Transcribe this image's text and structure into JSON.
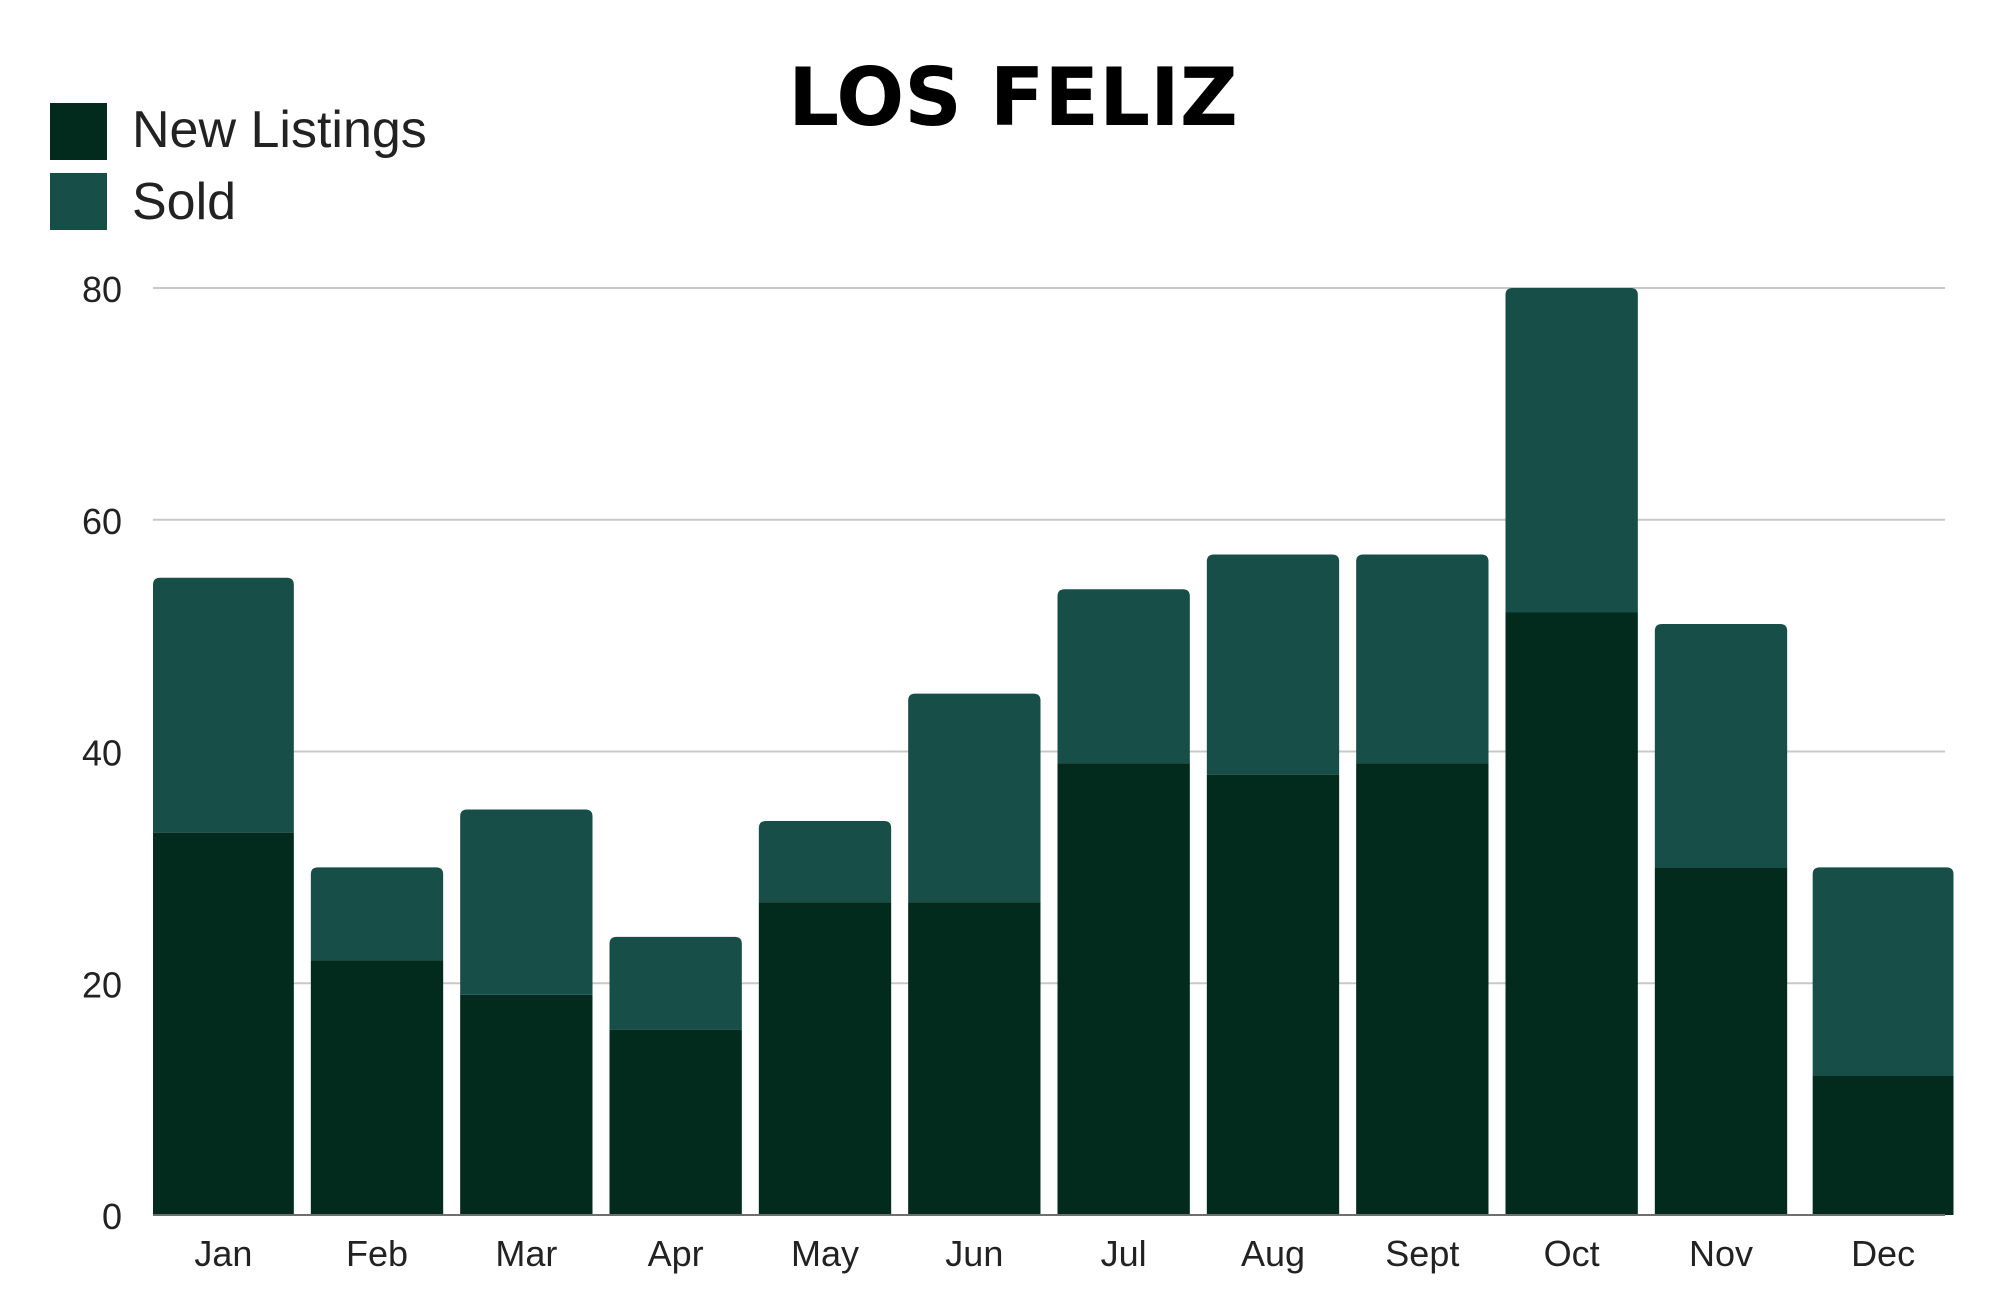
{
  "chart_data": {
    "type": "bar",
    "stacked": true,
    "title": "LOS FELIZ",
    "categories": [
      "Jan",
      "Feb",
      "Mar",
      "Apr",
      "May",
      "Jun",
      "Jul",
      "Aug",
      "Sept",
      "Oct",
      "Nov",
      "Dec"
    ],
    "series": [
      {
        "name": "New Listings",
        "color": "#022b1d",
        "values": [
          33,
          22,
          19,
          16,
          27,
          27,
          39,
          38,
          39,
          52,
          30,
          12
        ]
      },
      {
        "name": "Sold",
        "color": "#174f48",
        "values": [
          22,
          8,
          16,
          8,
          7,
          18,
          15,
          19,
          18,
          28,
          21,
          18
        ]
      }
    ],
    "ylim": [
      0,
      80
    ],
    "yticks": [
      0,
      20,
      40,
      60,
      80
    ],
    "grid": true,
    "legend_position": "top-left"
  }
}
